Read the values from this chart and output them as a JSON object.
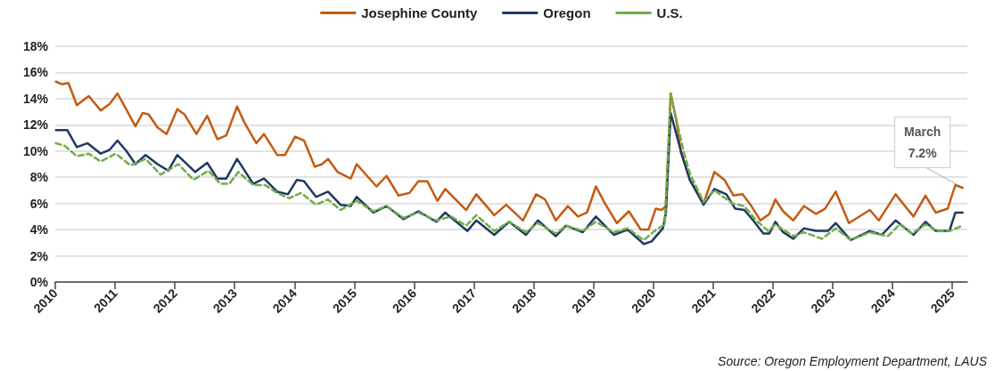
{
  "chart_data": {
    "type": "line",
    "legend": "top",
    "grid": "y",
    "marker": "none",
    "xlim": [
      2010,
      2025.25
    ],
    "xticks": [
      2010,
      2011,
      2012,
      2013,
      2014,
      2015,
      2016,
      2017,
      2018,
      2019,
      2020,
      2021,
      2022,
      2023,
      2024,
      2025
    ],
    "ylim": [
      0,
      18
    ],
    "yticks": [
      {
        "value": 0,
        "label": "0%"
      },
      {
        "value": 2,
        "label": "2%"
      },
      {
        "value": 4,
        "label": "4%"
      },
      {
        "value": 6,
        "label": "6%"
      },
      {
        "value": 8,
        "label": "8%"
      },
      {
        "value": 10,
        "label": "10%"
      },
      {
        "value": 12,
        "label": "12%"
      },
      {
        "value": 14,
        "label": "14%"
      },
      {
        "value": 16,
        "label": "16%"
      },
      {
        "value": 18,
        "label": "18%"
      }
    ],
    "annotations": [
      {
        "text": "March\n7.2%",
        "x": 2025.17,
        "y": 7.2
      },
      "Source: Oregon Employment Department, LAUS"
    ],
    "series": [
      {
        "name": "Josephine County",
        "color": "#c55a11",
        "line_style": "solid",
        "x": [
          2010.01,
          2010.11,
          2010.22,
          2010.36,
          2010.56,
          2010.76,
          2010.91,
          2011.04,
          2011.16,
          2011.34,
          2011.46,
          2011.56,
          2011.71,
          2011.86,
          2012.04,
          2012.16,
          2012.36,
          2012.54,
          2012.71,
          2012.86,
          2013.04,
          2013.16,
          2013.36,
          2013.49,
          2013.71,
          2013.84,
          2014.01,
          2014.16,
          2014.34,
          2014.46,
          2014.56,
          2014.72,
          2014.94,
          2015.04,
          2015.37,
          2015.54,
          2015.74,
          2015.92,
          2016.07,
          2016.22,
          2016.39,
          2016.52,
          2016.87,
          2017.04,
          2017.34,
          2017.54,
          2017.82,
          2018.04,
          2018.19,
          2018.37,
          2018.57,
          2018.74,
          2018.89,
          2019.04,
          2019.19,
          2019.39,
          2019.59,
          2019.79,
          2019.92,
          2020.04,
          2020.14,
          2020.21,
          2020.29,
          2020.39,
          2020.46,
          2020.61,
          2020.84,
          2021.02,
          2021.19,
          2021.34,
          2021.49,
          2021.64,
          2021.79,
          2021.94,
          2022.04,
          2022.17,
          2022.34,
          2022.52,
          2022.72,
          2022.87,
          2023.05,
          2023.27,
          2023.62,
          2023.77,
          2024.05,
          2024.35,
          2024.55,
          2024.72,
          2024.92,
          2025.05,
          2025.17
        ],
        "values": [
          15.3,
          15.1,
          15.2,
          13.5,
          14.2,
          13.1,
          13.6,
          14.4,
          13.4,
          11.9,
          12.9,
          12.8,
          11.8,
          11.3,
          13.2,
          12.8,
          11.3,
          12.7,
          10.9,
          11.2,
          13.4,
          12.2,
          10.6,
          11.3,
          9.7,
          9.7,
          11.1,
          10.8,
          8.8,
          9.0,
          9.4,
          8.4,
          7.9,
          9.0,
          7.3,
          8.1,
          6.6,
          6.8,
          7.7,
          7.7,
          6.2,
          7.1,
          5.5,
          6.7,
          5.1,
          5.9,
          4.7,
          6.7,
          6.3,
          4.7,
          5.8,
          5.0,
          5.3,
          7.3,
          6.0,
          4.5,
          5.4,
          4.0,
          4.0,
          5.6,
          5.5,
          5.8,
          14.4,
          12.2,
          9.9,
          7.8,
          6.0,
          8.4,
          7.8,
          6.6,
          6.7,
          5.8,
          4.7,
          5.2,
          6.3,
          5.4,
          4.7,
          5.8,
          5.2,
          5.6,
          6.9,
          4.5,
          5.5,
          4.7,
          6.7,
          5.0,
          6.6,
          5.3,
          5.6,
          7.4,
          7.2
        ]
      },
      {
        "name": "Oregon",
        "color": "#1f3864",
        "line_style": "solid",
        "x": [
          2010.01,
          2010.2,
          2010.36,
          2010.54,
          2010.76,
          2010.91,
          2011.04,
          2011.19,
          2011.34,
          2011.51,
          2011.71,
          2011.89,
          2012.04,
          2012.34,
          2012.54,
          2012.71,
          2012.86,
          2013.04,
          2013.31,
          2013.49,
          2013.71,
          2013.89,
          2014.04,
          2014.16,
          2014.36,
          2014.56,
          2014.77,
          2014.94,
          2015.04,
          2015.32,
          2015.54,
          2015.82,
          2016.07,
          2016.37,
          2016.52,
          2016.89,
          2017.04,
          2017.34,
          2017.59,
          2017.87,
          2018.07,
          2018.37,
          2018.54,
          2018.82,
          2019.04,
          2019.34,
          2019.57,
          2019.84,
          2019.97,
          2020.16,
          2020.21,
          2020.29,
          2020.46,
          2020.61,
          2020.84,
          2021.02,
          2021.22,
          2021.37,
          2021.52,
          2021.67,
          2021.84,
          2021.94,
          2022.04,
          2022.17,
          2022.34,
          2022.52,
          2022.72,
          2022.92,
          2023.05,
          2023.3,
          2023.62,
          2023.82,
          2024.05,
          2024.35,
          2024.55,
          2024.72,
          2024.95,
          2025.05,
          2025.17
        ],
        "values": [
          11.6,
          11.6,
          10.3,
          10.6,
          9.8,
          10.1,
          10.8,
          10.0,
          9.0,
          9.7,
          9.0,
          8.5,
          9.7,
          8.4,
          9.1,
          7.9,
          7.9,
          9.4,
          7.5,
          7.9,
          6.9,
          6.7,
          7.8,
          7.7,
          6.5,
          6.9,
          5.9,
          5.8,
          6.5,
          5.3,
          5.8,
          4.8,
          5.4,
          4.6,
          5.3,
          3.9,
          4.7,
          3.6,
          4.6,
          3.6,
          4.7,
          3.5,
          4.3,
          3.8,
          5.0,
          3.6,
          4.0,
          2.9,
          3.1,
          4.1,
          5.3,
          12.9,
          10.0,
          7.8,
          5.9,
          7.1,
          6.7,
          5.6,
          5.5,
          4.7,
          3.7,
          3.7,
          4.6,
          3.8,
          3.3,
          4.1,
          3.9,
          3.9,
          4.5,
          3.2,
          3.9,
          3.6,
          4.7,
          3.6,
          4.6,
          3.9,
          3.9,
          5.3,
          5.3
        ]
      },
      {
        "name": "U.S.",
        "color": "#70ad47",
        "line_style": "dashed",
        "x": [
          2010.01,
          2010.16,
          2010.36,
          2010.56,
          2010.76,
          2011.01,
          2011.26,
          2011.51,
          2011.76,
          2012.06,
          2012.31,
          2012.56,
          2012.76,
          2012.91,
          2013.06,
          2013.31,
          2013.51,
          2013.71,
          2013.91,
          2014.11,
          2014.36,
          2014.56,
          2014.77,
          2015.04,
          2015.32,
          2015.54,
          2015.82,
          2016.07,
          2016.37,
          2016.62,
          2016.87,
          2017.04,
          2017.34,
          2017.59,
          2017.87,
          2018.07,
          2018.37,
          2018.54,
          2018.82,
          2019.04,
          2019.34,
          2019.57,
          2019.84,
          2020.02,
          2020.19,
          2020.29,
          2020.51,
          2020.61,
          2020.84,
          2021.02,
          2021.32,
          2021.52,
          2021.72,
          2021.92,
          2022.04,
          2022.34,
          2022.52,
          2022.82,
          2023.05,
          2023.3,
          2023.62,
          2023.92,
          2024.12,
          2024.32,
          2024.55,
          2024.75,
          2024.95,
          2025.17
        ],
        "values": [
          10.6,
          10.4,
          9.6,
          9.8,
          9.2,
          9.8,
          8.9,
          9.4,
          8.2,
          9.0,
          7.8,
          8.5,
          7.5,
          7.5,
          8.4,
          7.4,
          7.4,
          6.8,
          6.4,
          6.8,
          5.9,
          6.3,
          5.5,
          6.2,
          5.4,
          5.8,
          4.9,
          5.3,
          4.7,
          5.0,
          4.3,
          5.1,
          3.9,
          4.6,
          3.8,
          4.5,
          3.7,
          4.3,
          3.9,
          4.6,
          3.8,
          4.1,
          3.2,
          3.9,
          4.4,
          14.3,
          9.9,
          8.3,
          6.1,
          7.0,
          6.0,
          5.8,
          4.7,
          3.9,
          4.4,
          3.5,
          3.8,
          3.3,
          4.1,
          3.2,
          3.8,
          3.5,
          4.4,
          3.7,
          4.4,
          3.9,
          3.9,
          4.3
        ]
      }
    ]
  }
}
